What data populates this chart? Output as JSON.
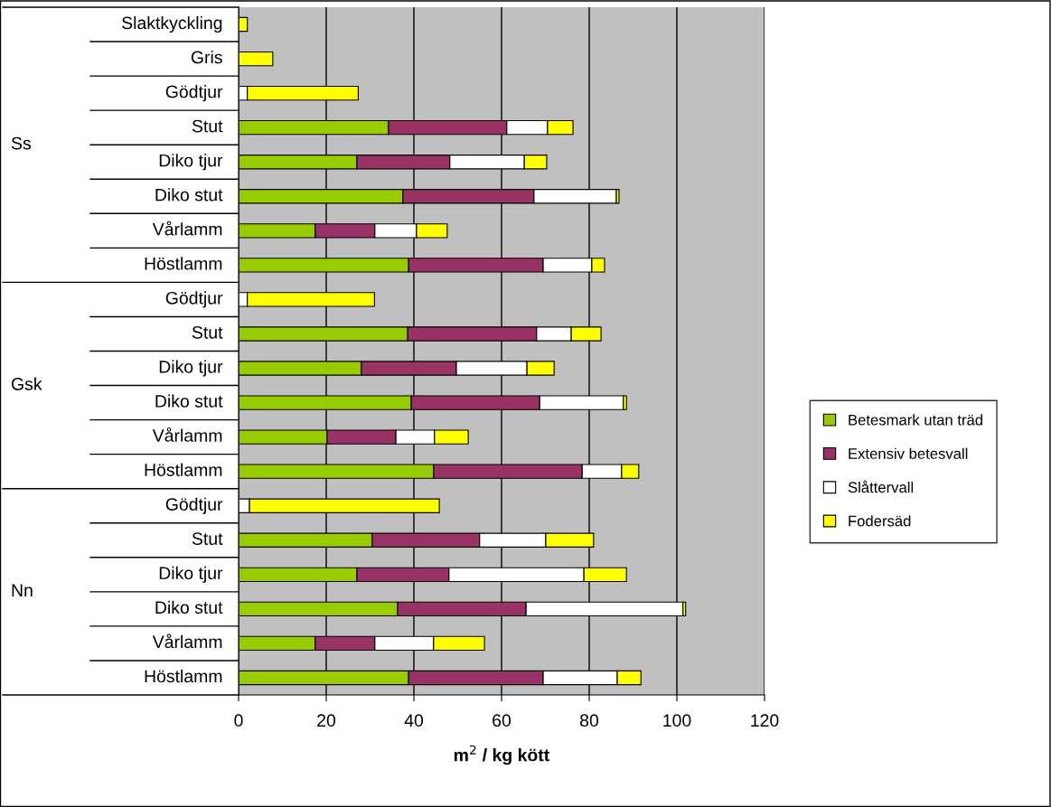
{
  "chart_data": {
    "type": "bar",
    "orientation": "horizontal",
    "stacked": true,
    "categories": [
      "Slaktkyckling",
      "Gris",
      "Gödtjur",
      "Stut",
      "Diko tjur",
      "Diko stut",
      "Vårlamm",
      "Höstlamm",
      "Gödtjur",
      "Stut",
      "Diko tjur",
      "Diko stut",
      "Vårlamm",
      "Höstlamm",
      "Gödtjur",
      "Stut",
      "Diko tjur",
      "Diko stut",
      "Vårlamm",
      "Höstlamm"
    ],
    "series": [
      {
        "name": "Betesmark utan träd",
        "color": "#99cc00",
        "values": [
          0,
          0,
          0,
          34.2,
          27,
          37.5,
          17.5,
          38.8,
          0,
          38.6,
          28,
          39.4,
          20.2,
          44.5,
          0,
          30.5,
          27,
          36.3,
          17.5,
          38.8
        ]
      },
      {
        "name": "Extensiv betesvall",
        "color": "#993366",
        "values": [
          0,
          0,
          0,
          27,
          21.2,
          29.9,
          13.6,
          30.7,
          0,
          29.4,
          21.7,
          29.3,
          15.7,
          33.9,
          0,
          24.5,
          21,
          29.3,
          13.6,
          30.7
        ]
      },
      {
        "name": "Slåttervall",
        "color": "#ffffff",
        "values": [
          0,
          0,
          2,
          9.3,
          17,
          18.8,
          9.5,
          11.1,
          2,
          7.9,
          16.1,
          19.1,
          8.8,
          9,
          2.5,
          15.1,
          30.8,
          35.8,
          13.4,
          16.9
        ]
      },
      {
        "name": "Fodersäd",
        "color": "#ffff00",
        "values": [
          2,
          7.8,
          25.3,
          5.8,
          5.1,
          0.6,
          7,
          2.9,
          29,
          6.8,
          6.2,
          0.7,
          7.7,
          3.9,
          43.3,
          10.9,
          9.7,
          0.6,
          11.6,
          5.4
        ]
      }
    ],
    "xlim": [
      0,
      120
    ],
    "xticks": [
      0,
      20,
      40,
      60,
      80,
      100,
      120
    ],
    "xlabel": "m$^{2}$ / kg kött",
    "annotations": [
      "Ss",
      "Gsk",
      "Nn"
    ],
    "grid": "x",
    "legend": "right"
  }
}
